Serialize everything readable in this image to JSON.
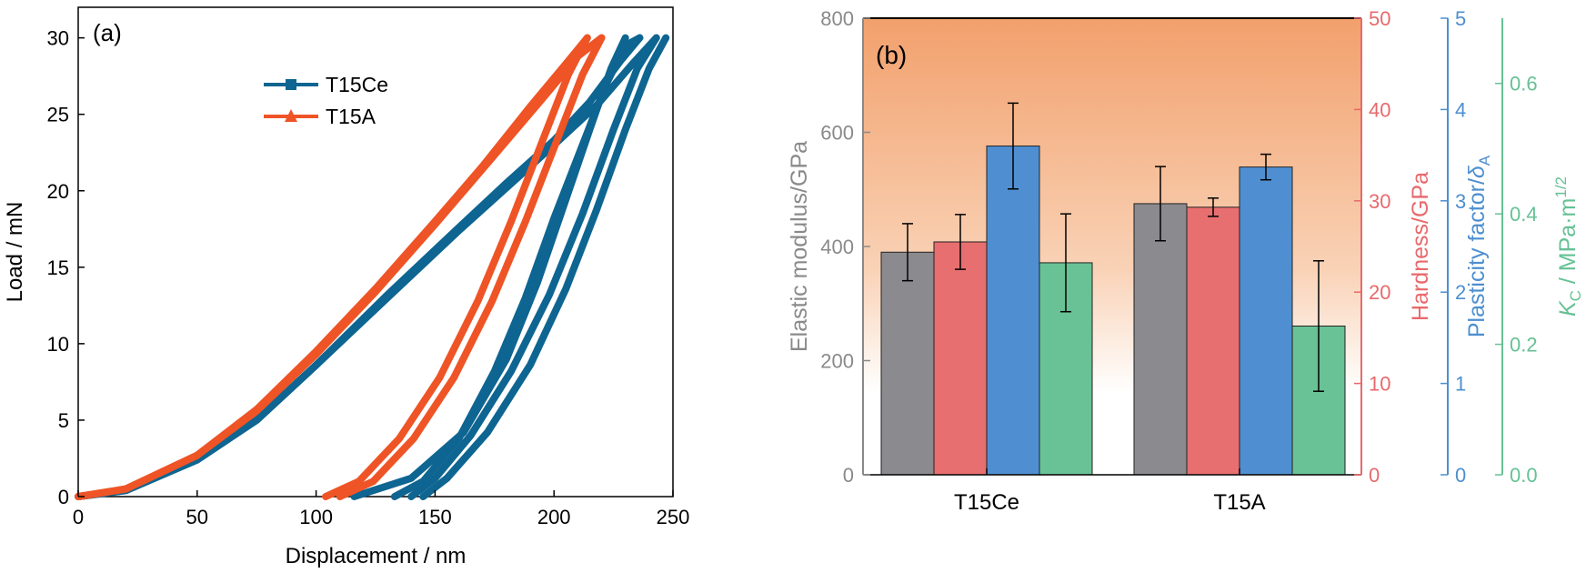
{
  "chart_data": [
    {
      "type": "line",
      "panel_label": "(a)",
      "xlabel": "Displacement / nm",
      "ylabel": "Load / mN",
      "xlim": [
        0,
        250
      ],
      "ylim": [
        0,
        32
      ],
      "xticks": [
        0,
        50,
        100,
        150,
        200,
        250
      ],
      "yticks": [
        0,
        5,
        10,
        15,
        20,
        25,
        30
      ],
      "legend_position": "top-center",
      "series": [
        {
          "name": "T15Ce",
          "color": "#0e6591",
          "marker": "square",
          "loading_curves": [
            [
              [
                0,
                0
              ],
              [
                20,
                0.4
              ],
              [
                50,
                2.4
              ],
              [
                75,
                5.0
              ],
              [
                100,
                8.6
              ],
              [
                130,
                13.2
              ],
              [
                160,
                17.6
              ],
              [
                180,
                20.5
              ],
              [
                200,
                23.3
              ],
              [
                215,
                25.8
              ],
              [
                228,
                28.5
              ],
              [
                236,
                30
              ]
            ],
            [
              [
                0,
                0
              ],
              [
                20,
                0.4
              ],
              [
                50,
                2.4
              ],
              [
                75,
                5.0
              ],
              [
                100,
                8.6
              ],
              [
                130,
                13.0
              ],
              [
                160,
                17.4
              ],
              [
                180,
                20.2
              ],
              [
                200,
                23.0
              ],
              [
                218,
                25.6
              ],
              [
                233,
                28.3
              ],
              [
                243,
                30
              ]
            ]
          ],
          "unloading_curves": [
            [
              [
                236,
                30
              ],
              [
                230,
                29.5
              ],
              [
                222,
                27.0
              ],
              [
                212,
                23.0
              ],
              [
                200,
                18.2
              ],
              [
                188,
                13.0
              ],
              [
                175,
                8.2
              ],
              [
                160,
                3.8
              ],
              [
                145,
                1.0
              ],
              [
                133,
                0
              ]
            ],
            [
              [
                243,
                30
              ],
              [
                235,
                28.0
              ],
              [
                225,
                24.0
              ],
              [
                212,
                18.5
              ],
              [
                198,
                13.2
              ],
              [
                182,
                8.2
              ],
              [
                165,
                4.0
              ],
              [
                150,
                1.2
              ],
              [
                140,
                0
              ]
            ],
            [
              [
                247,
                30
              ],
              [
                240,
                28.0
              ],
              [
                230,
                24.0
              ],
              [
                218,
                18.8
              ],
              [
                205,
                13.6
              ],
              [
                190,
                8.6
              ],
              [
                172,
                4.2
              ],
              [
                155,
                1.2
              ],
              [
                145,
                0
              ]
            ],
            [
              [
                230,
                30
              ],
              [
                224,
                28.0
              ],
              [
                215,
                24.0
              ],
              [
                204,
                19.0
              ],
              [
                193,
                14.0
              ],
              [
                180,
                9.0
              ],
              [
                162,
                4.2
              ],
              [
                140,
                1.2
              ],
              [
                116,
                0
              ]
            ]
          ]
        },
        {
          "name": "T15A",
          "color": "#ef5426",
          "marker": "triangle",
          "loading_curves": [
            [
              [
                0,
                0
              ],
              [
                20,
                0.5
              ],
              [
                50,
                2.7
              ],
              [
                75,
                5.7
              ],
              [
                100,
                9.5
              ],
              [
                125,
                13.6
              ],
              [
                150,
                18.0
              ],
              [
                170,
                21.6
              ],
              [
                190,
                25.5
              ],
              [
                205,
                28.3
              ],
              [
                214,
                30
              ]
            ],
            [
              [
                0,
                0
              ],
              [
                20,
                0.5
              ],
              [
                50,
                2.7
              ],
              [
                75,
                5.6
              ],
              [
                100,
                9.3
              ],
              [
                125,
                13.4
              ],
              [
                150,
                17.8
              ],
              [
                172,
                21.8
              ],
              [
                195,
                26.0
              ],
              [
                210,
                28.8
              ],
              [
                220,
                30
              ]
            ]
          ],
          "unloading_curves": [
            [
              [
                214,
                30
              ],
              [
                206,
                27.6
              ],
              [
                195,
                23.2
              ],
              [
                182,
                18.0
              ],
              [
                168,
                12.8
              ],
              [
                152,
                7.8
              ],
              [
                135,
                3.8
              ],
              [
                118,
                1.0
              ],
              [
                104,
                0
              ]
            ],
            [
              [
                220,
                30
              ],
              [
                212,
                27.6
              ],
              [
                201,
                23.2
              ],
              [
                188,
                18.0
              ],
              [
                174,
                12.8
              ],
              [
                158,
                7.8
              ],
              [
                141,
                3.8
              ],
              [
                124,
                1.0
              ],
              [
                110,
                0
              ]
            ]
          ]
        }
      ]
    },
    {
      "type": "bar",
      "panel_label": "(b)",
      "categories": [
        "T15Ce",
        "T15A"
      ],
      "background": "gradient from orange (top) to white (bottom)",
      "axes": [
        {
          "key": "modulus",
          "label": "Elastic modulus/GPa",
          "color": "#8a8a8a",
          "side": "left",
          "range": [
            0,
            800
          ],
          "ticks": [
            0,
            200,
            400,
            600,
            800
          ]
        },
        {
          "key": "hardness",
          "label": "Hardness/GPa",
          "color": "#e8696c",
          "side": "right",
          "range": [
            0,
            50
          ],
          "ticks": [
            0,
            10,
            20,
            30,
            40,
            50
          ]
        },
        {
          "key": "plasticity",
          "label_main": "Plasticity factor/",
          "label_sym": "δ",
          "label_sub": "A",
          "color": "#4d8fd0",
          "side": "right",
          "range": [
            0,
            5
          ],
          "ticks": [
            0,
            1,
            2,
            3,
            4,
            5
          ]
        },
        {
          "key": "kc",
          "label_sym": "K",
          "label_sub": "C",
          "label_main": " / MPa·m",
          "label_sup": "1/2",
          "color": "#66c194",
          "side": "right",
          "range": [
            0,
            0.7
          ],
          "ticks": [
            "0.0",
            "0.2",
            "0.4",
            "0.6"
          ]
        }
      ],
      "series": [
        {
          "axis": "modulus",
          "color": "#8b8b8f",
          "values": [
            390,
            475
          ],
          "errors": [
            50,
            65
          ]
        },
        {
          "axis": "hardness",
          "color": "#e86f70",
          "values": [
            25.5,
            29.3
          ],
          "errors": [
            3.0,
            1.0
          ]
        },
        {
          "axis": "plasticity",
          "color": "#4f8fd1",
          "values": [
            3.6,
            3.37
          ],
          "errors": [
            0.47,
            0.14
          ]
        },
        {
          "axis": "kc",
          "color": "#68c295",
          "values": [
            0.325,
            0.228
          ],
          "errors": [
            0.075,
            0.1
          ]
        }
      ]
    }
  ]
}
